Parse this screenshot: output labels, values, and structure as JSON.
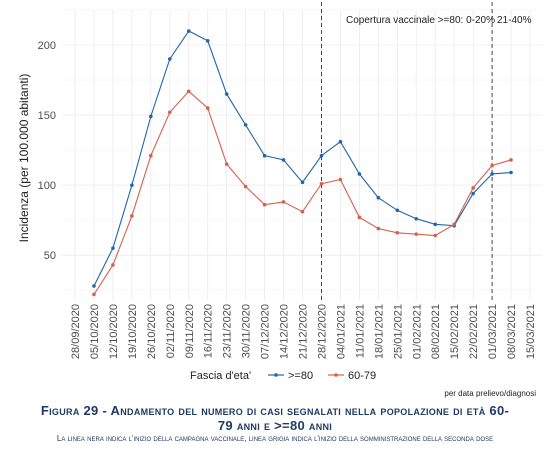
{
  "chart_data": {
    "type": "line",
    "ylabel": "Incidenza (per 100.000 abitanti)",
    "ylim": [
      18,
      225
    ],
    "yticks": [
      50,
      100,
      150,
      200
    ],
    "x": [
      "28/09/2020",
      "05/10/2020",
      "12/10/2020",
      "19/10/2020",
      "26/10/2020",
      "02/11/2020",
      "09/11/2020",
      "16/11/2020",
      "23/11/2020",
      "30/11/2020",
      "07/12/2020",
      "14/12/2020",
      "21/12/2020",
      "28/12/2020",
      "04/01/2021",
      "11/01/2021",
      "18/01/2021",
      "25/01/2021",
      "01/02/2021",
      "08/02/2021",
      "15/02/2021",
      "22/02/2021",
      "01/03/2021",
      "08/03/2021",
      "15/03/2021"
    ],
    "series": [
      {
        "name": ">=80",
        "color": "#2166ac",
        "values": [
          null,
          28,
          55,
          100,
          149,
          190,
          210,
          203,
          165,
          143,
          121,
          118,
          102,
          121,
          131,
          108,
          91,
          82,
          76,
          72,
          71,
          94,
          108,
          109,
          null
        ]
      },
      {
        "name": "60-79",
        "color": "#d6604d",
        "values": [
          null,
          22,
          43,
          78,
          121,
          152,
          167,
          155,
          115,
          99,
          86,
          88,
          81,
          101,
          104,
          77,
          69,
          66,
          65,
          64,
          72,
          98,
          114,
          118,
          null
        ]
      }
    ],
    "vlines": [
      {
        "x": "28/12/2020",
        "style": "dashed"
      },
      {
        "x": "01/03/2021",
        "style": "dashed"
      }
    ],
    "annotations": {
      "copertura": "Copertura vaccinale >=80:  0-20%",
      "copertura2": "21-40%"
    },
    "legend": {
      "title": "Fascia d'eta'",
      "position": "bottom"
    },
    "grid": true
  },
  "note": "per data prelievo/diagnosi",
  "caption": {
    "title": "Figura 29 - Andamento del numero di casi segnalati nella popolazione di età 60-79 anni e >=80 anni",
    "subtitle": "La linea nera indica l'inizio della campagna vaccinale, linea grigia indica l'inizio della somministrazione della seconda dose"
  }
}
